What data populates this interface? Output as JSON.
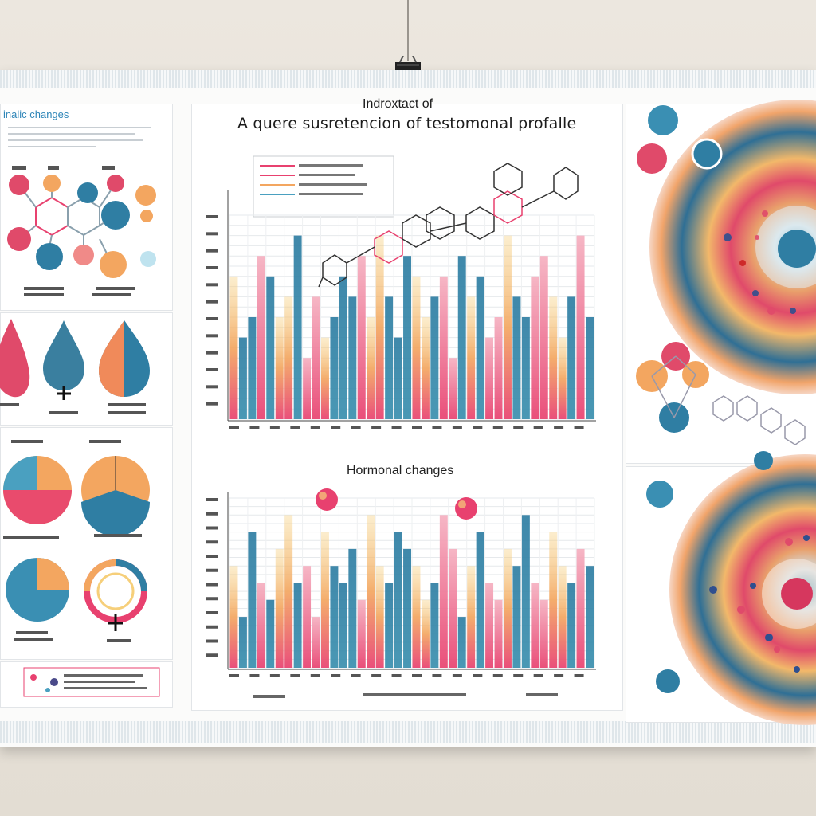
{
  "poster": {
    "subtitle": "Indroxtact of",
    "title": "A quere susretencion of testomonal profalle",
    "left_panel_title": "inalic changes",
    "middle_section_title": "Hormonal changes"
  },
  "colors": {
    "blue": "#2f7ea3",
    "teal": "#4aa0c0",
    "orange": "#f3b25e",
    "pink": "#e8416f",
    "yellow": "#f6cf7a"
  },
  "chart_data": [
    {
      "type": "bar",
      "values": [
        7,
        4,
        5,
        8,
        7,
        5,
        6,
        9,
        3,
        6,
        4,
        5,
        7,
        6,
        8,
        5,
        9,
        6,
        4,
        8,
        7,
        5,
        6,
        7,
        3,
        8,
        6,
        7,
        4,
        5,
        9,
        6,
        5,
        7,
        8,
        6,
        4,
        6,
        9,
        5
      ],
      "ylim": [
        0,
        10
      ],
      "grid": true
    },
    {
      "type": "bar",
      "values": [
        6,
        3,
        8,
        5,
        4,
        7,
        9,
        5,
        6,
        3,
        8,
        6,
        5,
        7,
        4,
        9,
        6,
        5,
        8,
        7,
        6,
        4,
        5,
        9,
        7,
        3,
        6,
        8,
        5,
        4,
        7,
        6,
        9,
        5,
        4,
        8,
        6,
        5,
        7,
        6
      ],
      "ylim": [
        0,
        10
      ],
      "grid": true
    }
  ]
}
